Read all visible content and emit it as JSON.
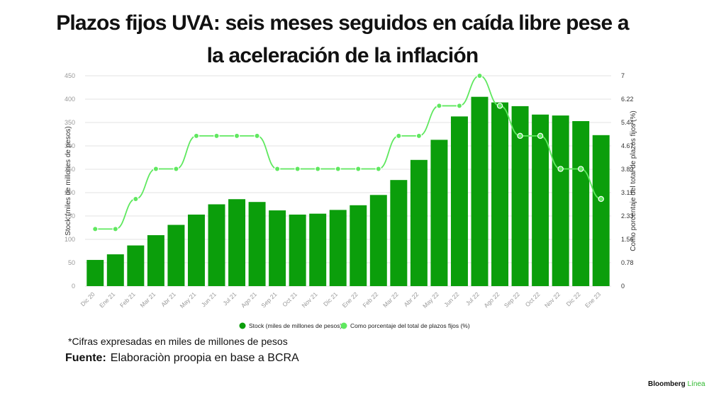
{
  "title_line1": "Plazos fijos UVA: seis meses seguidos en caída libre pese a",
  "title_line2": "la aceleración de la inflación",
  "note": "*Cifras expresadas en miles de millones de pesos",
  "source_label": "Fuente:",
  "source_text": "Elaboraciòn proopia en base a BCRA",
  "brand_name": "Bloomberg",
  "brand_accent": "Línea",
  "colors": {
    "bar": "#0b9e0b",
    "line": "#5fe85f",
    "grid": "#e3e3e3",
    "tick": "#999999"
  },
  "chart_data": {
    "type": "bar",
    "categories": [
      "Dic 20",
      "Ene 21",
      "Feb 21",
      "Mar 21",
      "Abr 21",
      "May 21",
      "Jun 21",
      "Jul 21",
      "Ago 21",
      "Sep 21",
      "Oct 21",
      "Nov 21",
      "Dic 21",
      "Ene 22",
      "Feb 22",
      "Mar 22",
      "Abr 22",
      "May 22",
      "Jun 22",
      "Jul 22",
      "Ago 22",
      "Sep 22",
      "Oct 22",
      "Nov 22",
      "Dic 22",
      "Ene 23"
    ],
    "series": [
      {
        "name": "Stock (miles de millones de pesos)",
        "type": "bar",
        "axis": "left",
        "values": [
          56,
          68,
          87,
          109,
          131,
          153,
          175,
          186,
          180,
          162,
          153,
          155,
          163,
          173,
          195,
          227,
          270,
          313,
          363,
          405,
          393,
          385,
          367,
          365,
          353,
          323
        ]
      },
      {
        "name": "Como porcentaje del total de plazos fijos (%)",
        "type": "line",
        "axis": "right",
        "values": [
          1.9,
          1.9,
          2.9,
          3.9,
          3.9,
          5.0,
          5.0,
          5.0,
          5.0,
          3.9,
          3.9,
          3.9,
          3.9,
          3.9,
          3.9,
          5.0,
          5.0,
          6.0,
          6.0,
          7.0,
          6.0,
          5.0,
          5.0,
          3.9,
          3.9,
          2.9
        ]
      }
    ],
    "ylabel": "Stock (miles de millones de pesos)",
    "y2label": "Como porcentaje del total de plazos fijos (%)",
    "ylim": [
      0,
      450
    ],
    "yticks": [
      "0",
      "50",
      "100",
      "150",
      "200",
      "250",
      "300",
      "350",
      "400",
      "450"
    ],
    "y2lim": [
      0,
      7
    ],
    "y2ticks": [
      "0",
      "0.78",
      "1.56",
      "2.33",
      "3.11",
      "3.89",
      "4.67",
      "5.44",
      "6.22",
      "7"
    ],
    "grid": true,
    "legend_position": "bottom-center"
  }
}
